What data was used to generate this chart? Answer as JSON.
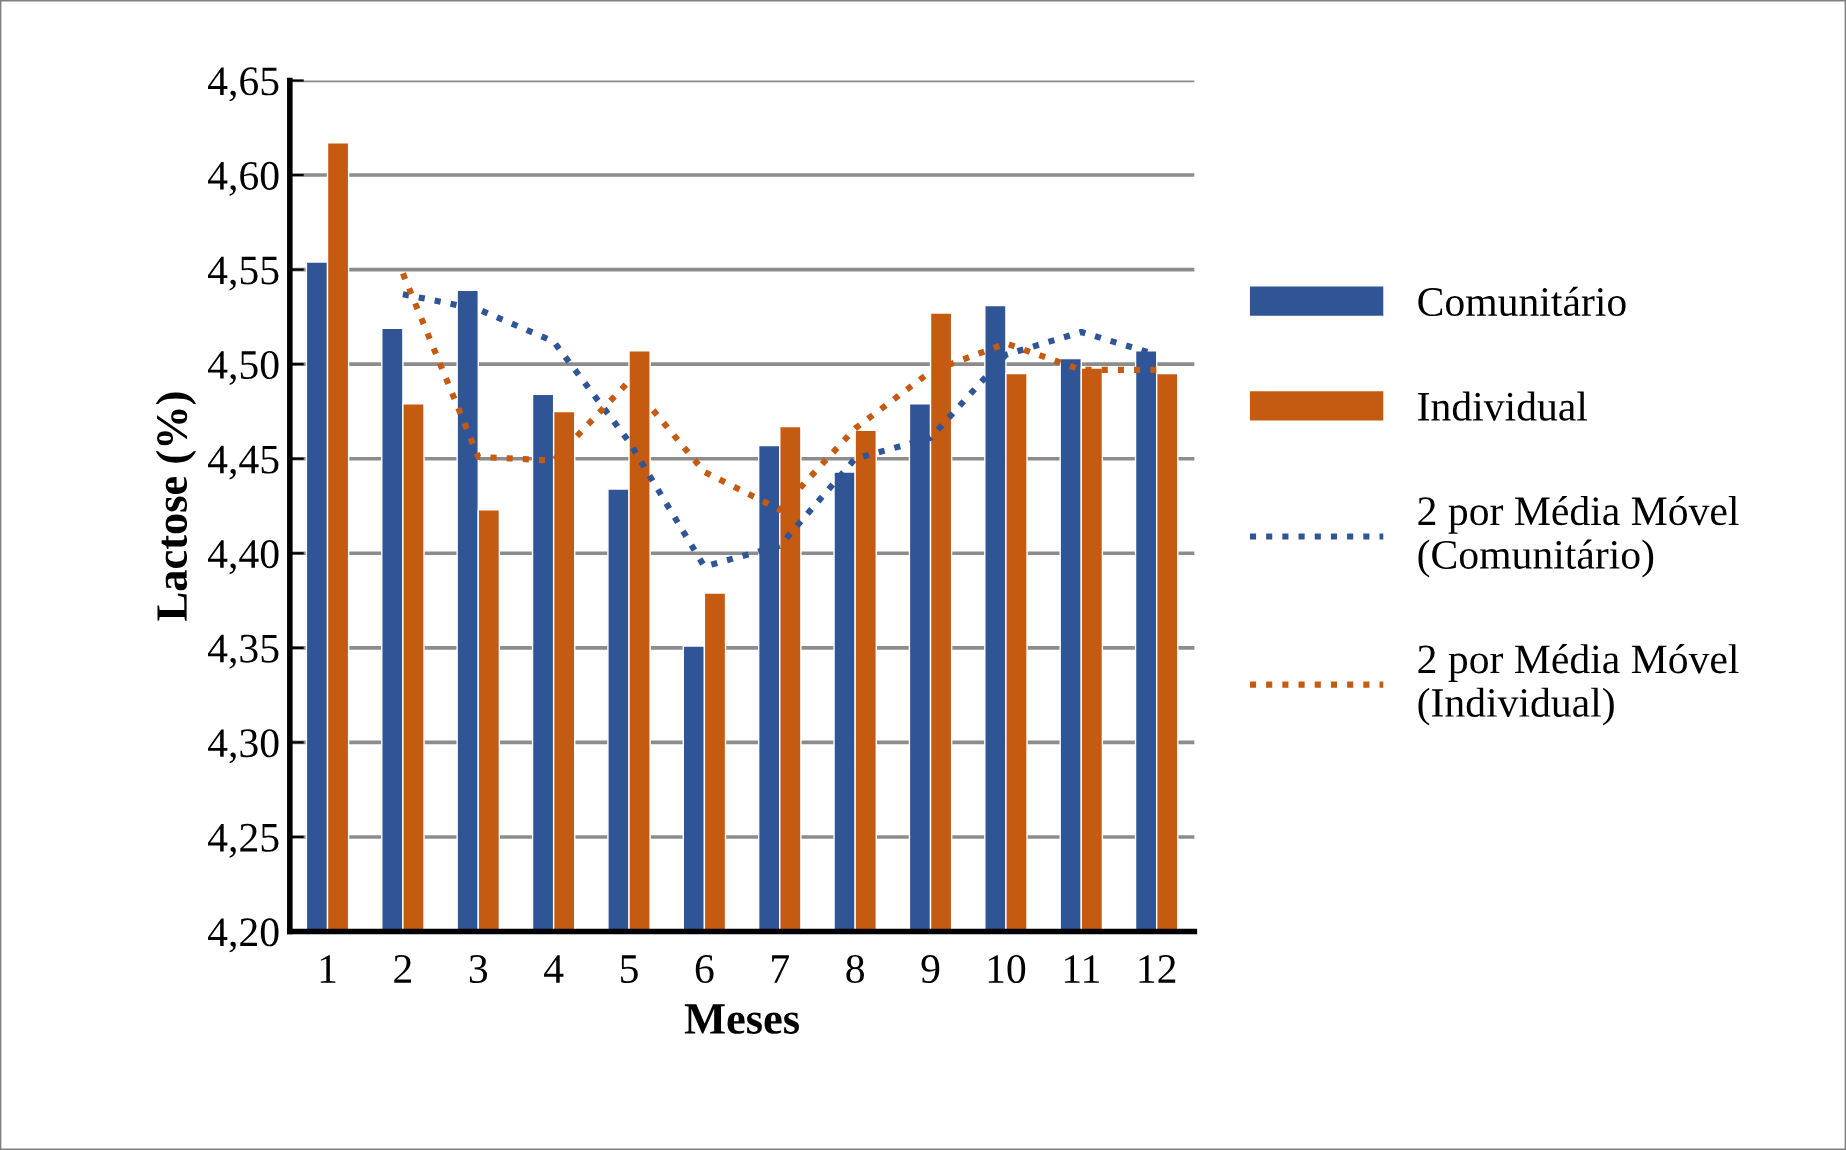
{
  "chart_data": {
    "type": "bar",
    "xlabel": "Meses",
    "ylabel": "Lactose (%)",
    "categories": [
      "1",
      "2",
      "3",
      "4",
      "5",
      "6",
      "7",
      "8",
      "9",
      "10",
      "11",
      "12"
    ],
    "series": [
      {
        "name": "Comunitário",
        "color": "#2f5597",
        "values": [
          4.554,
          4.519,
          4.539,
          4.484,
          4.434,
          4.351,
          4.457,
          4.443,
          4.479,
          4.531,
          4.503,
          4.507
        ]
      },
      {
        "name": "Individual",
        "color": "#c55a11",
        "values": [
          4.617,
          4.479,
          4.423,
          4.475,
          4.507,
          4.379,
          4.467,
          4.465,
          4.527,
          4.495,
          4.498,
          4.495
        ]
      },
      {
        "name": "2 por Média Móvel (Comunitário)",
        "type": "line",
        "line_style": "dotted",
        "color": "#2f5597",
        "values": [
          null,
          4.537,
          4.529,
          4.512,
          4.459,
          4.393,
          4.404,
          4.45,
          4.461,
          4.505,
          4.517,
          4.505
        ]
      },
      {
        "name": "2 por Média Móvel (Individual)",
        "type": "line",
        "line_style": "dotted",
        "color": "#c55a11",
        "values": [
          null,
          4.548,
          4.451,
          4.449,
          4.491,
          4.443,
          4.423,
          4.466,
          4.496,
          4.511,
          4.497,
          4.497
        ]
      }
    ],
    "ylim": [
      4.2,
      4.65
    ],
    "yticks": [
      {
        "value": 4.2,
        "label": "4,20"
      },
      {
        "value": 4.25,
        "label": "4,25"
      },
      {
        "value": 4.3,
        "label": "4,30"
      },
      {
        "value": 4.35,
        "label": "4,35"
      },
      {
        "value": 4.4,
        "label": "4,40"
      },
      {
        "value": 4.45,
        "label": "4,45"
      },
      {
        "value": 4.5,
        "label": "4,50"
      },
      {
        "value": 4.55,
        "label": "4,55"
      },
      {
        "value": 4.6,
        "label": "4,60"
      },
      {
        "value": 4.65,
        "label": "4,65"
      }
    ],
    "grid": "y",
    "legend": "right"
  }
}
